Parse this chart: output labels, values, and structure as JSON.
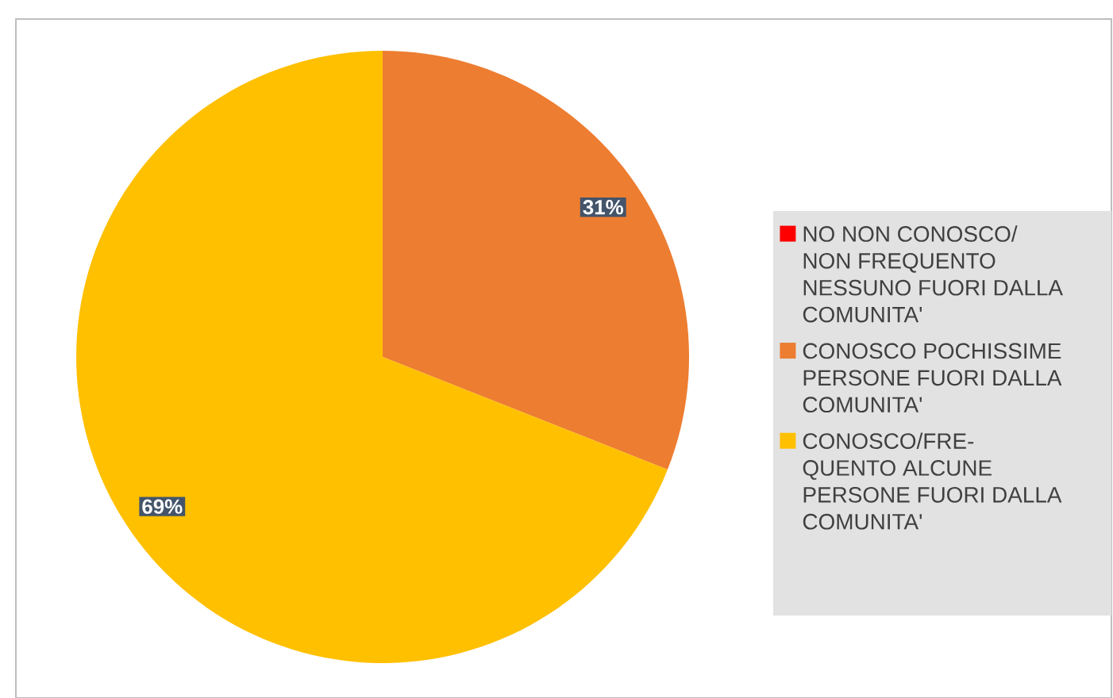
{
  "chart_data": {
    "type": "pie",
    "categories": [
      "NO NON CONOSCO/ NON FREQUENTO NESSUNO FUORI DALLA COMUNITA'",
      "CONOSCO POCHISSIME PERSONE FUORI DALLA COMUNITA'",
      "CONOSCO/FRE-QUENTO ALCUNE PERSONE FUORI DALLA COMUNITA'"
    ],
    "values": [
      0,
      31,
      69
    ],
    "colors": [
      "#ff0000",
      "#ed7d31",
      "#ffc000"
    ],
    "value_labels": [
      null,
      "31%",
      "69%"
    ],
    "legend": "right"
  }
}
